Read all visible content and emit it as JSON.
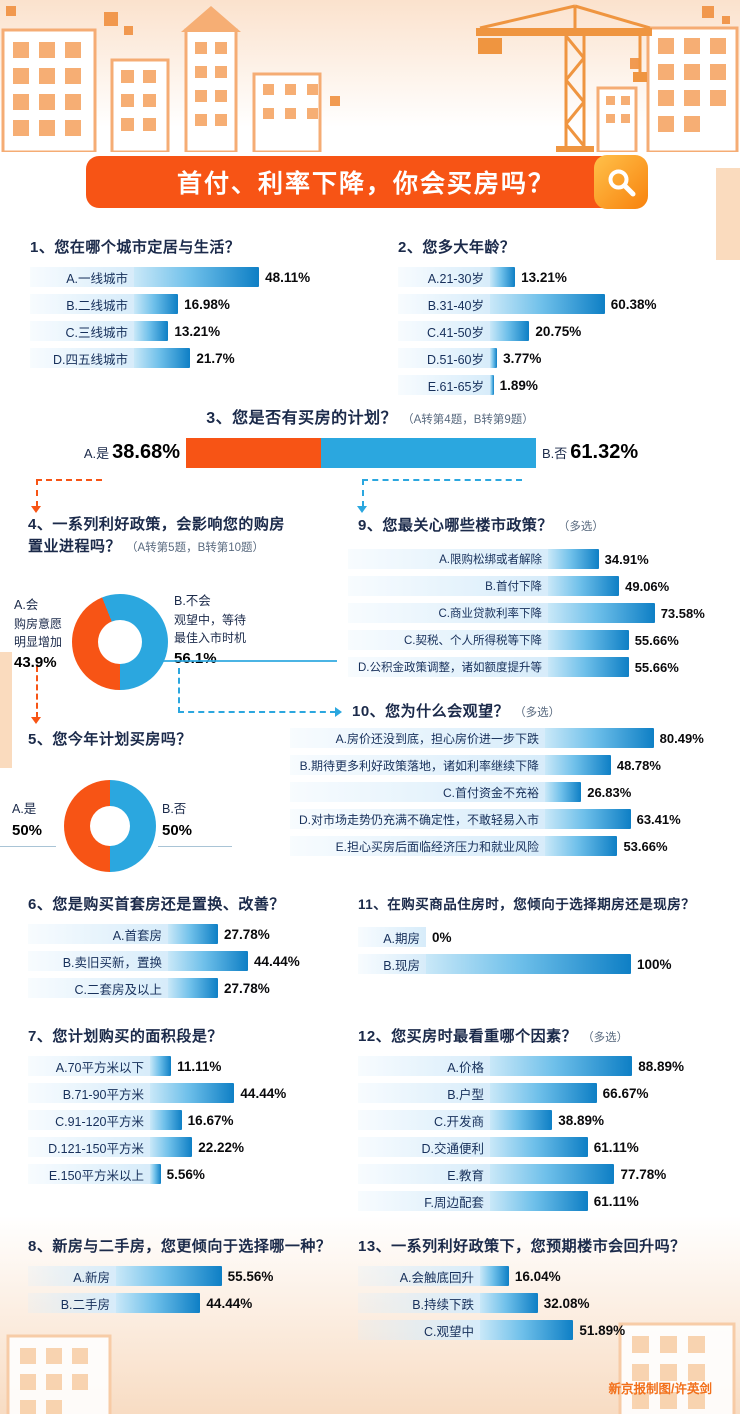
{
  "banner": {
    "title": "首付、利率下降，你会买房吗？",
    "search_icon": "magnifier"
  },
  "footer": {
    "credit": "新京报制图/许英剑"
  },
  "colors": {
    "orange": "#F75415",
    "blue": "#2BA7DF",
    "bar_light": "#C9E8F8",
    "bar_dark": "#0E7FC5",
    "track": "#D7ECFA"
  },
  "chart_data": {
    "q1": {
      "type": "bar",
      "unit": "%",
      "title": "1、您在哪个城市定居与生活？",
      "items": [
        {
          "label": "A.一线城市",
          "value": 48.11,
          "pct": "48.11%"
        },
        {
          "label": "B.二线城市",
          "value": 16.98,
          "pct": "16.98%"
        },
        {
          "label": "C.三线城市",
          "value": 13.21,
          "pct": "13.21%"
        },
        {
          "label": "D.四五线城市",
          "value": 21.7,
          "pct": "21.7%"
        }
      ]
    },
    "q2": {
      "type": "bar",
      "unit": "%",
      "title": "2、您多大年龄？",
      "items": [
        {
          "label": "A.21-30岁",
          "value": 13.21,
          "pct": "13.21%"
        },
        {
          "label": "B.31-40岁",
          "value": 60.38,
          "pct": "60.38%"
        },
        {
          "label": "C.41-50岁",
          "value": 20.75,
          "pct": "20.75%"
        },
        {
          "label": "D.51-60岁",
          "value": 3.77,
          "pct": "3.77%"
        },
        {
          "label": "E.61-65岁",
          "value": 1.89,
          "pct": "1.89%"
        }
      ]
    },
    "q3": {
      "type": "stacked-bar",
      "unit": "%",
      "title": "3、您是否有买房的计划？",
      "note": "（A转第4题，B转第9题）",
      "segments": [
        {
          "label": "A.是",
          "value": 38.68,
          "pct": "38.68%",
          "color": "#F75415"
        },
        {
          "label": "B.否",
          "value": 61.32,
          "pct": "61.32%",
          "color": "#2BA7DF"
        }
      ]
    },
    "q4": {
      "type": "donut",
      "unit": "%",
      "title_line1": "4、一系列利好政策，会影响您的购房",
      "title_line2": "置业进程吗？",
      "note": "（A转第5题，B转第10题）",
      "segments": [
        {
          "name": "A.会",
          "desc1": "购房意愿",
          "desc2": "明显增加",
          "value": 43.9,
          "pct": "43.9%",
          "color": "#F75415"
        },
        {
          "name": "B.不会",
          "desc1": "观望中，等待",
          "desc2": "最佳入市时机",
          "value": 56.1,
          "pct": "56.1%",
          "color": "#2BA7DF"
        }
      ]
    },
    "q5": {
      "type": "donut",
      "unit": "%",
      "title": "5、您今年计划买房吗？",
      "segments": [
        {
          "name": "A.是",
          "value": 50,
          "pct": "50%",
          "color": "#F75415"
        },
        {
          "name": "B.否",
          "value": 50,
          "pct": "50%",
          "color": "#2BA7DF"
        }
      ]
    },
    "q6": {
      "type": "bar",
      "unit": "%",
      "title": "6、您是购买首套房还是置换、改善？",
      "items": [
        {
          "label": "A.首套房",
          "value": 27.78,
          "pct": "27.78%"
        },
        {
          "label": "B.卖旧买新，置换",
          "value": 44.44,
          "pct": "44.44%"
        },
        {
          "label": "C.二套房及以上",
          "value": 27.78,
          "pct": "27.78%"
        }
      ]
    },
    "q7": {
      "type": "bar",
      "unit": "%",
      "title": "7、您计划购买的面积段是？",
      "items": [
        {
          "label": "A.70平方米以下",
          "value": 11.11,
          "pct": "11.11%"
        },
        {
          "label": "B.71-90平方米",
          "value": 44.44,
          "pct": "44.44%"
        },
        {
          "label": "C.91-120平方米",
          "value": 16.67,
          "pct": "16.67%"
        },
        {
          "label": "D.121-150平方米",
          "value": 22.22,
          "pct": "22.22%"
        },
        {
          "label": "E.150平方米以上",
          "value": 5.56,
          "pct": "5.56%"
        }
      ]
    },
    "q8": {
      "type": "bar",
      "unit": "%",
      "title": "8、新房与二手房，您更倾向于选择哪一种？",
      "items": [
        {
          "label": "A.新房",
          "value": 55.56,
          "pct": "55.56%"
        },
        {
          "label": "B.二手房",
          "value": 44.44,
          "pct": "44.44%"
        }
      ]
    },
    "q9": {
      "type": "bar",
      "unit": "%",
      "title": "9、您最关心哪些楼市政策？",
      "note": "（多选）",
      "items": [
        {
          "label": "A.限购松绑或者解除",
          "value": 34.91,
          "pct": "34.91%"
        },
        {
          "label": "B.首付下降",
          "value": 49.06,
          "pct": "49.06%"
        },
        {
          "label": "C.商业贷款利率下降",
          "value": 73.58,
          "pct": "73.58%"
        },
        {
          "label": "C.契税、个人所得税等下降",
          "value": 55.66,
          "pct": "55.66%"
        },
        {
          "label": "D.公积金政策调整，诸如额度提升等",
          "value": 55.66,
          "pct": "55.66%"
        }
      ]
    },
    "q10": {
      "type": "bar",
      "unit": "%",
      "title": "10、您为什么会观望？",
      "note": "（多选）",
      "items": [
        {
          "label": "A.房价还没到底，担心房价进一步下跌",
          "value": 80.49,
          "pct": "80.49%"
        },
        {
          "label": "B.期待更多利好政策落地，诸如利率继续下降",
          "value": 48.78,
          "pct": "48.78%"
        },
        {
          "label": "C.首付资金不充裕",
          "value": 26.83,
          "pct": "26.83%"
        },
        {
          "label": "D.对市场走势仍充满不确定性，不敢轻易入市",
          "value": 63.41,
          "pct": "63.41%"
        },
        {
          "label": "E.担心买房后面临经济压力和就业风险",
          "value": 53.66,
          "pct": "53.66%"
        }
      ]
    },
    "q11": {
      "type": "bar",
      "unit": "%",
      "title": "11、在购买商品住房时，您倾向于选择期房还是现房？",
      "items": [
        {
          "label": "A.期房",
          "value": 0,
          "pct": "0%"
        },
        {
          "label": "B.现房",
          "value": 100,
          "pct": "100%"
        }
      ]
    },
    "q12": {
      "type": "bar",
      "unit": "%",
      "title": "12、您买房时最看重哪个因素？",
      "note": "（多选）",
      "items": [
        {
          "label": "A.价格",
          "value": 88.89,
          "pct": "88.89%"
        },
        {
          "label": "B.户型",
          "value": 66.67,
          "pct": "66.67%"
        },
        {
          "label": "C.开发商",
          "value": 38.89,
          "pct": "38.89%"
        },
        {
          "label": "D.交通便利",
          "value": 61.11,
          "pct": "61.11%"
        },
        {
          "label": "E.教育",
          "value": 77.78,
          "pct": "77.78%"
        },
        {
          "label": "F.周边配套",
          "value": 61.11,
          "pct": "61.11%"
        }
      ]
    },
    "q13": {
      "type": "bar",
      "unit": "%",
      "title": "13、一系列利好政策下，您预期楼市会回升吗？",
      "items": [
        {
          "label": "A.会触底回升",
          "value": 16.04,
          "pct": "16.04%"
        },
        {
          "label": "B.持续下跌",
          "value": 32.08,
          "pct": "32.08%"
        },
        {
          "label": "C.观望中",
          "value": 51.89,
          "pct": "51.89%"
        }
      ]
    }
  }
}
